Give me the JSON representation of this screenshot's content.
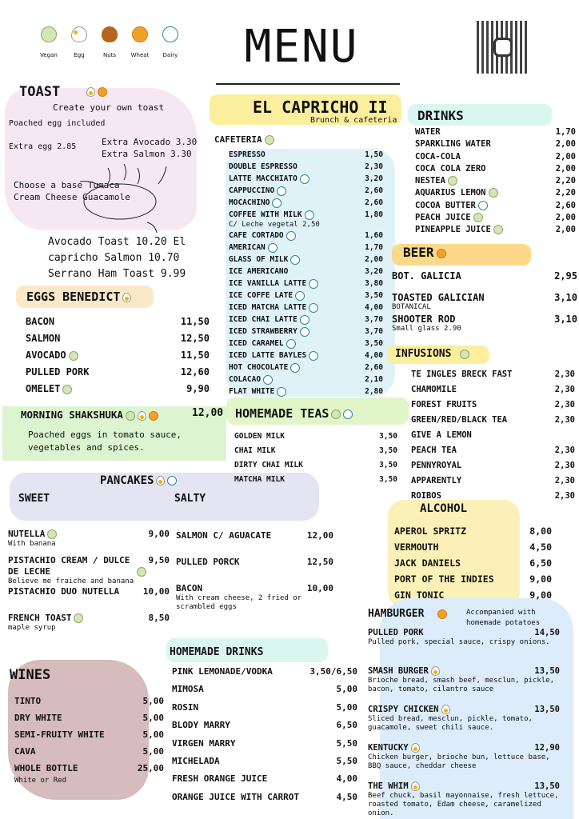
{
  "legend": [
    {
      "icon": "vegan",
      "label": "Vegan"
    },
    {
      "icon": "egg",
      "label": "Egg"
    },
    {
      "icon": "nuts",
      "label": "Nuts"
    },
    {
      "icon": "wheat",
      "label": "Wheat"
    },
    {
      "icon": "dairy",
      "label": "Dairy"
    }
  ],
  "title": "MENU",
  "brand": {
    "name": "EL CAPRICHO II",
    "subtitle": "Brunch & cafeteria"
  },
  "qr": {
    "icon": "instagram-icon"
  },
  "colors": {
    "pink": "#f6e8f3",
    "blue": "#dff2f8",
    "yellow": "#fbe99a",
    "orange": "#fbd88a",
    "green": "#dcf5d0",
    "lavender": "#e4e4f2",
    "brown": "#d6bcbc",
    "mint": "#d9f7ef",
    "lightblue": "#dcecfb"
  },
  "toast": {
    "title": "TOAST",
    "icons": [
      "egg",
      "wheat"
    ],
    "create": "Create your own toast",
    "poached": "Poached egg included",
    "extra_egg": "Extra egg 2.85",
    "extra_avocado": "Extra Avocado 3.30",
    "extra_salmon": "Extra Salmon 3.30",
    "base1": "Choose a base Tumaca",
    "base2": "Cream Cheese Guacamole",
    "list1": "Avocado Toast 10.20 El",
    "list2": "capricho Salmon 10.70",
    "list3": "Serrano Ham Toast 9.99"
  },
  "cafeteria": {
    "title": "CAFETERIA",
    "icons": [
      "vegan"
    ],
    "items": [
      {
        "name": "ESPRESSO",
        "price": "1,50"
      },
      {
        "name": "DOUBLE ESPRESSO",
        "price": "2,30"
      },
      {
        "name": "LATTE MACCHIATO",
        "price": "3,20",
        "icons": [
          "dairy"
        ]
      },
      {
        "name": "CAPPUCCINO",
        "price": "2,60",
        "icons": [
          "dairy"
        ]
      },
      {
        "name": "MOCACHINO",
        "price": "2,60",
        "icons": [
          "dairy"
        ]
      },
      {
        "name": "COFFEE WITH MILK",
        "price": "1,80",
        "icons": [
          "dairy"
        ],
        "note": "C/ Leche vegetal 2,50"
      },
      {
        "name": "CAFE CORTADO",
        "price": "1,60",
        "icons": [
          "dairy"
        ]
      },
      {
        "name": "AMERICAN",
        "price": "1,70",
        "icons": [
          "dairy"
        ]
      },
      {
        "name": "GLASS OF MILK",
        "price": "2,00",
        "icons": [
          "dairy"
        ]
      },
      {
        "name": "ICE AMERICANO",
        "price": "3,20"
      },
      {
        "name": "ICE VANILLA LATTE",
        "price": "3,80",
        "icons": [
          "dairy"
        ]
      },
      {
        "name": "ICE COFFE LATE",
        "price": "3,50",
        "icons": [
          "dairy"
        ]
      },
      {
        "name": "ICED MATCHA LATTE",
        "price": "4,00",
        "icons": [
          "dairy"
        ]
      },
      {
        "name": "ICED CHAI LATTE",
        "price": "3,70",
        "icons": [
          "dairy"
        ]
      },
      {
        "name": "ICED STRAWBERRY",
        "price": "3,70",
        "icons": [
          "dairy"
        ]
      },
      {
        "name": "ICED CARAMEL",
        "price": "3,50",
        "icons": [
          "dairy"
        ]
      },
      {
        "name": "ICED LATTE BAYLES",
        "price": "4,00",
        "icons": [
          "dairy"
        ]
      },
      {
        "name": "HOT CHOCOLATE",
        "price": "2,60",
        "icons": [
          "dairy"
        ]
      },
      {
        "name": "COLACAO",
        "price": "2,10",
        "icons": [
          "dairy"
        ]
      },
      {
        "name": "FLAT WHITE",
        "price": "2,80",
        "icons": [
          "dairy"
        ]
      }
    ]
  },
  "drinks": {
    "title": "DRINKS",
    "items": [
      {
        "name": "WATER",
        "price": "1,70"
      },
      {
        "name": "SPARKLING WATER",
        "price": "2,00"
      },
      {
        "name": "COCA-COLA",
        "price": "2,00"
      },
      {
        "name": "COCA COLA ZERO",
        "price": "2,00"
      },
      {
        "name": "NESTEA",
        "price": "2,20",
        "icons": [
          "vegan"
        ]
      },
      {
        "name": "AQUARIUS LEMON",
        "price": "2,20",
        "icons": [
          "vegan"
        ]
      },
      {
        "name": "COCOA BUTTER",
        "price": "2,60",
        "icons": [
          "dairy"
        ]
      },
      {
        "name": "PEACH JUICE",
        "price": "2,00",
        "icons": [
          "vegan"
        ]
      },
      {
        "name": "PINEAPPLE JUICE",
        "price": "2,00",
        "icons": [
          "vegan"
        ]
      }
    ]
  },
  "beer": {
    "title": "BEER",
    "icons": [
      "wheat"
    ],
    "items": [
      {
        "name": "BOT. GALICIA",
        "price": "2,95"
      },
      {
        "name": "TOASTED GALICIAN",
        "price": "3,10",
        "note": "BOTANICAL"
      },
      {
        "name": "SHOOTER ROD",
        "price": "3,10",
        "note": "Small glass 2.90"
      }
    ]
  },
  "infusions": {
    "title": "INFUSIONS",
    "icons": [
      "vegan"
    ],
    "items": [
      {
        "name": "TE INGLES BRECK FAST",
        "price": "2,30"
      },
      {
        "name": "CHAMOMILE",
        "price": "2,30"
      },
      {
        "name": "FOREST FRUITS",
        "price": "2,30"
      },
      {
        "name": "GREEN/RED/BLACK TEA",
        "price": "2,30"
      },
      {
        "name": "GIVE A LEMON",
        "price": ""
      },
      {
        "name": "PEACH TEA",
        "price": "2,30"
      },
      {
        "name": "PENNYROYAL",
        "price": "2,30"
      },
      {
        "name": "APPARENTLY",
        "price": "2,30"
      },
      {
        "name": "ROIBOS",
        "price": "2,30"
      }
    ]
  },
  "alcohol": {
    "title": "ALCOHOL",
    "items": [
      {
        "name": "APEROL SPRITZ",
        "price": "8,00"
      },
      {
        "name": "VERMOUTH",
        "price": "4,50"
      },
      {
        "name": "JACK DANIELS",
        "price": "6,50"
      },
      {
        "name": "PORT OF THE INDIES",
        "price": "9,00"
      },
      {
        "name": "GIN TONIC",
        "price": "9,00"
      }
    ]
  },
  "hamburger": {
    "title": "HAMBURGER",
    "icons": [
      "wheat"
    ],
    "note": "Accompanied with homemade potatoes",
    "items": [
      {
        "name": "PULLED PORK",
        "price": "14,50",
        "note": "Pulled pork, special sauce, crispy onions."
      },
      {
        "name": "SMASH BURGER",
        "price": "13,50",
        "icons": [
          "egg"
        ],
        "note": "Brioche bread, smash beef, mesclun, pickle, bacon, tomato, cilantro sauce"
      },
      {
        "name": "CRISPY CHICKEN",
        "price": "13,50",
        "icons": [
          "egg"
        ],
        "note": "Sliced bread, mesclun, pickle, tomato, guacamole, sweet chili sauce."
      },
      {
        "name": "KENTUCKY",
        "price": "12,90",
        "icons": [
          "egg"
        ],
        "note": "Chicken burger, brioche bun, lettuce base, BBQ sauce, cheddar cheese"
      },
      {
        "name": "THE WHIM",
        "price": "13,50",
        "icons": [
          "egg"
        ],
        "note": "Beef chuck, basil mayonnaise, fresh lettuce, roasted tomato, Edam cheese, caramelized onion."
      }
    ]
  },
  "eggs_benedict": {
    "title": "EGGS BENEDICT",
    "icons": [
      "egg"
    ],
    "items": [
      {
        "name": "BACON",
        "price": "11,50"
      },
      {
        "name": "SALMON",
        "price": "12,50"
      },
      {
        "name": "AVOCADO",
        "price": "11,50",
        "icons": [
          "vegan"
        ]
      },
      {
        "name": "PULLED PORK",
        "price": "12,60"
      },
      {
        "name": "OMELET",
        "price": "9,90",
        "icons": [
          "vegan"
        ]
      }
    ]
  },
  "shakshuka": {
    "title": "MORNING SHAKSHUKA",
    "icons": [
      "vegan",
      "egg",
      "wheat"
    ],
    "price": "12,00",
    "note": "Poached eggs in tomato sauce, vegetables and spices."
  },
  "teas": {
    "title": "HOMEMADE TEAS",
    "icons": [
      "vegan",
      "dairy"
    ],
    "items": [
      {
        "name": "GOLDEN MILK",
        "price": "3,50"
      },
      {
        "name": "CHAI MILK",
        "price": "3,50"
      },
      {
        "name": "DIRTY CHAI MILK",
        "price": "3,50"
      },
      {
        "name": "MATCHA MILK",
        "price": "3,50"
      }
    ]
  },
  "pancakes": {
    "title": "PANCAKES",
    "icons": [
      "egg",
      "dairy"
    ],
    "sweet_label": "SWEET",
    "salty_label": "SALTY",
    "sweet": [
      {
        "name": "NUTELLA",
        "price": "9,00",
        "icons": [
          "vegan"
        ],
        "note": "With banana"
      },
      {
        "name": "PISTACHIO CREAM / DULCE DE LECHE",
        "price": "9,50",
        "icons": [
          "vegan"
        ],
        "note": "Believe me fraiche and banana"
      },
      {
        "name": "PISTACHIO DUO NUTELLA",
        "price": "10,00"
      },
      {
        "name": "FRENCH TOAST",
        "price": "8,50",
        "icons": [
          "vegan"
        ],
        "note": "maple syrup"
      }
    ],
    "salty": [
      {
        "name": "SALMON C/ AGUACATE",
        "price": "12,00"
      },
      {
        "name": "PULLED PORCK",
        "price": "12,50"
      },
      {
        "name": "BACON",
        "price": "10,00",
        "note": "With cream cheese, 2 fried or scrambled eggs"
      }
    ]
  },
  "wines": {
    "title": "WINES",
    "items": [
      {
        "name": "TINTO",
        "price": "5,00"
      },
      {
        "name": "DRY WHITE",
        "price": "5,00"
      },
      {
        "name": "SEMI-FRUITY WHITE",
        "price": "5,00"
      },
      {
        "name": "CAVA",
        "price": "5,00"
      },
      {
        "name": "WHOLE BOTTLE",
        "price": "25,00",
        "note": "White or Red"
      }
    ]
  },
  "homemade_drinks": {
    "title": "HOMEMADE DRINKS",
    "items": [
      {
        "name": "PINK LEMONADE/VODKA",
        "price": "3,50/6,50"
      },
      {
        "name": "MIMOSA",
        "price": "5,00"
      },
      {
        "name": "ROSIN",
        "price": "5,00"
      },
      {
        "name": "BLODY MARRY",
        "price": "6,50"
      },
      {
        "name": "VIRGEN MARRY",
        "price": "5,50"
      },
      {
        "name": "MICHELADA",
        "price": "5,50"
      },
      {
        "name": "FRESH ORANGE JUICE",
        "price": "4,00"
      },
      {
        "name": "ORANGE JUICE WITH CARROT",
        "price": "4,50"
      }
    ]
  }
}
